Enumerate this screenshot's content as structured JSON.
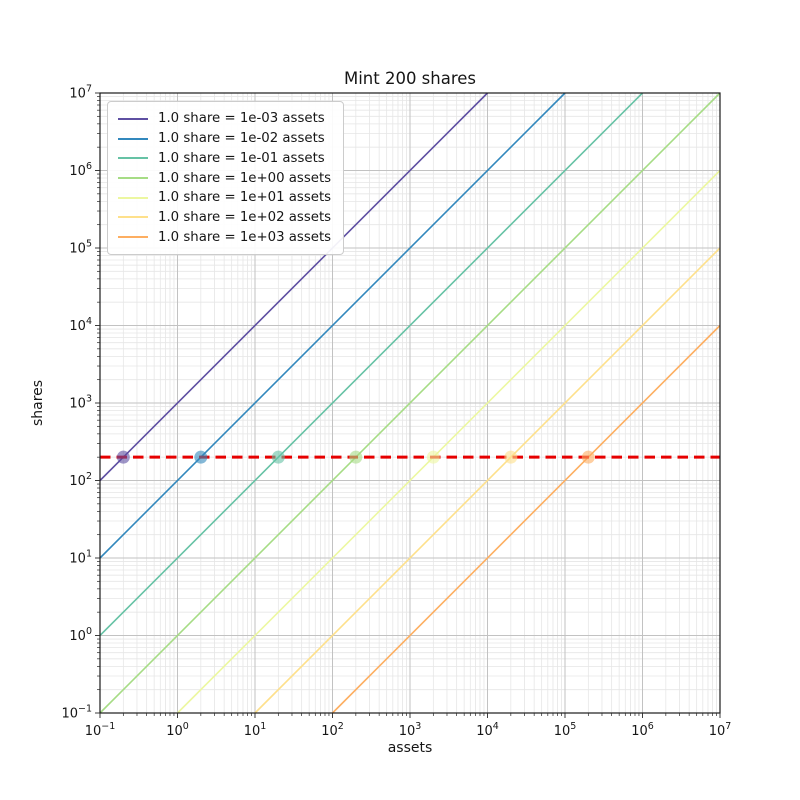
{
  "chart_data": {
    "type": "line",
    "title": "Mint 200 shares",
    "xlabel": "assets",
    "ylabel": "shares",
    "x_scale": "log",
    "y_scale": "log",
    "xlim": [
      0.1,
      10000000
    ],
    "ylim": [
      0.1,
      10000000
    ],
    "x_tick_exponents": [
      -1,
      0,
      1,
      2,
      3,
      4,
      5,
      6,
      7
    ],
    "y_tick_exponents": [
      -1,
      0,
      1,
      2,
      3,
      4,
      5,
      6,
      7
    ],
    "grid": {
      "major": true,
      "minor": true,
      "major_color": "#c2c2c2",
      "minor_color": "#e6e6e6"
    },
    "legend_position": "upper-left",
    "series": [
      {
        "label": "1.0 share = 1e-03 assets",
        "assets_per_share": 0.001,
        "color": "#5e4fa2",
        "marker": {
          "assets": 0.2,
          "shares": 200
        }
      },
      {
        "label": "1.0 share = 1e-02 assets",
        "assets_per_share": 0.01,
        "color": "#3288bd",
        "marker": {
          "assets": 2,
          "shares": 200
        }
      },
      {
        "label": "1.0 share = 1e-01 assets",
        "assets_per_share": 0.1,
        "color": "#66c2a5",
        "marker": {
          "assets": 20,
          "shares": 200
        }
      },
      {
        "label": "1.0 share = 1e+00 assets",
        "assets_per_share": 1,
        "color": "#a6dc85",
        "marker": {
          "assets": 200,
          "shares": 200
        }
      },
      {
        "label": "1.0 share = 1e+01 assets",
        "assets_per_share": 10,
        "color": "#ecf7a0",
        "marker": {
          "assets": 2000,
          "shares": 200
        }
      },
      {
        "label": "1.0 share = 1e+02 assets",
        "assets_per_share": 100,
        "color": "#fee08b",
        "marker": {
          "assets": 20000,
          "shares": 200
        }
      },
      {
        "label": "1.0 share = 1e+03 assets",
        "assets_per_share": 1000,
        "color": "#fdae61",
        "marker": {
          "assets": 200000,
          "shares": 200
        }
      }
    ],
    "reference_line": {
      "orientation": "horizontal",
      "shares": 200,
      "linestyle": "dashed",
      "color": "#e60000"
    },
    "marker_style": {
      "shape": "circle",
      "radius": 6.5,
      "opacity": 0.6
    }
  }
}
